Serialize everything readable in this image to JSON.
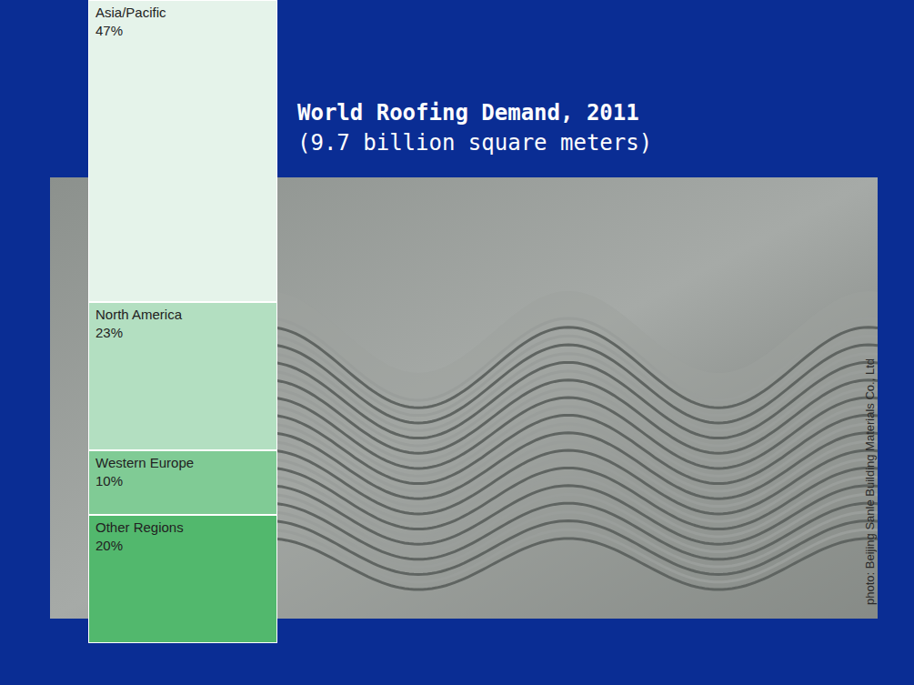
{
  "chart_data": {
    "type": "bar",
    "stacked": true,
    "title": "World Roofing Demand, 2011",
    "subtitle": "(9.7 billion square meters)",
    "categories": [
      null
    ],
    "series": [
      {
        "name": "Asia/Pacific",
        "color": "#e5f3ea",
        "values": [
          47
        ],
        "value_labels": [
          "47%"
        ]
      },
      {
        "name": "North America",
        "color": "#b3dfc1",
        "values": [
          23
        ],
        "value_labels": [
          "23%"
        ]
      },
      {
        "name": "Western Europe",
        "color": "#80cb95",
        "values": [
          10
        ],
        "value_labels": [
          "10%"
        ]
      },
      {
        "name": "Other Regions",
        "color": "#52b86d",
        "values": [
          20
        ],
        "value_labels": [
          "20%"
        ]
      }
    ],
    "ylim": [
      0,
      100
    ],
    "tick_labels": false,
    "data_labels": true,
    "annotations": [
      "photo: Beijing Sanle Building Materials Co., Ltd"
    ]
  }
}
